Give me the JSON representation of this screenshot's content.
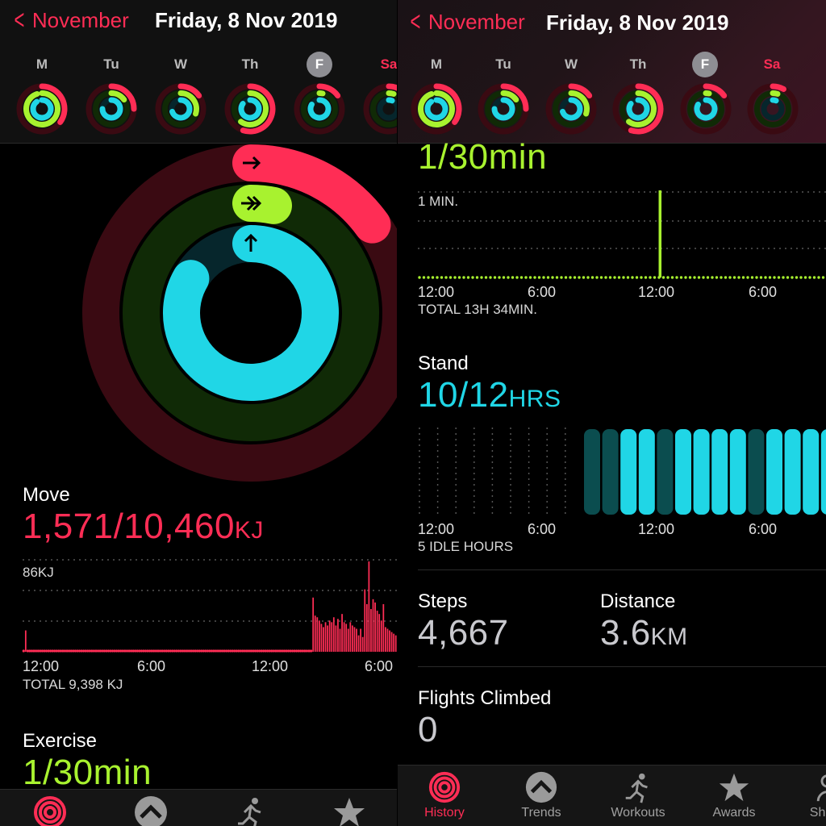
{
  "header": {
    "back_label": "November",
    "date_title": "Friday, 8 Nov 2019",
    "days": [
      "M",
      "Tu",
      "W",
      "Th",
      "F",
      "Sa"
    ],
    "selected_day": "F"
  },
  "rings": {
    "move_fraction": 0.15,
    "exercise_fraction": 0.033,
    "stand_fraction": 0.833
  },
  "move": {
    "label": "Move",
    "value": "1,571/10,460",
    "unit": "KJ",
    "chart_max_label": "86KJ",
    "total": "TOTAL 9,398 KJ",
    "axis": [
      "12:00",
      "6:00",
      "12:00",
      "6:00"
    ]
  },
  "exercise": {
    "label": "Exercise",
    "value": "1/30min",
    "chart_max_label": "1 MIN.",
    "total": "TOTAL 13H 34MIN.",
    "axis": [
      "12:00",
      "6:00",
      "12:00",
      "6:00"
    ]
  },
  "stand": {
    "label": "Stand",
    "value": "10/12",
    "unit": "HRS",
    "idle": "5 IDLE HOURS",
    "axis": [
      "12:00",
      "6:00",
      "12:00",
      "6:00"
    ]
  },
  "steps": {
    "label": "Steps",
    "value": "4,667"
  },
  "distance": {
    "label": "Distance",
    "value": "3.6",
    "unit": "KM"
  },
  "flights": {
    "label": "Flights Climbed",
    "value": "0"
  },
  "tabs": [
    {
      "label": "History",
      "icon": "activity-rings-icon",
      "active": true
    },
    {
      "label": "Trends",
      "icon": "chevron-up-circle-icon",
      "active": false
    },
    {
      "label": "Workouts",
      "icon": "running-figure-icon",
      "active": false
    },
    {
      "label": "Awards",
      "icon": "star-icon",
      "active": false
    },
    {
      "label": "Sha",
      "icon": "sharing-icon",
      "active": false
    }
  ],
  "colors": {
    "move": "#ff2d55",
    "exercise": "#a8f22f",
    "stand": "#20d6e6",
    "accent": "#ff2d55"
  },
  "chart_data": [
    {
      "type": "bar",
      "title": "Move",
      "xlabel": "",
      "ylabel": "",
      "x_ticks": [
        "12:00",
        "6:00",
        "12:00",
        "6:00"
      ],
      "y_max_label": "86KJ",
      "values": [
        2,
        26,
        2,
        2,
        2,
        2,
        2,
        2,
        2,
        2,
        2,
        2,
        2,
        2,
        2,
        2,
        2,
        2,
        2,
        2,
        2,
        2,
        2,
        2,
        2,
        2,
        2,
        2,
        2,
        2,
        2,
        2,
        2,
        2,
        2,
        2,
        2,
        2,
        2,
        2,
        2,
        2,
        2,
        2,
        2,
        2,
        2,
        2,
        2,
        2,
        2,
        2,
        2,
        2,
        2,
        2,
        2,
        2,
        2,
        2,
        2,
        2,
        2,
        2,
        2,
        2,
        2,
        2,
        2,
        2,
        2,
        2,
        2,
        2,
        2,
        2,
        2,
        2,
        2,
        2,
        2,
        2,
        2,
        2,
        2,
        2,
        2,
        2,
        2,
        2,
        2,
        2,
        2,
        2,
        2,
        2,
        2,
        2,
        2,
        2,
        2,
        2,
        2,
        2,
        2,
        2,
        2,
        2,
        2,
        2,
        2,
        2,
        2,
        2,
        2,
        2,
        2,
        2,
        2,
        2,
        2,
        2,
        2,
        2,
        2,
        2,
        2,
        2,
        2,
        2,
        2,
        2,
        2,
        2,
        2,
        2,
        2,
        2,
        2,
        2,
        66,
        44,
        42,
        38,
        34,
        30,
        36,
        32,
        38,
        36,
        42,
        32,
        40,
        28,
        46,
        36,
        34,
        28,
        36,
        32,
        30,
        28,
        20,
        28,
        18,
        76,
        58,
        110,
        52,
        64,
        60,
        50,
        46,
        38,
        58,
        30,
        28,
        26,
        24,
        22,
        20
      ],
      "ylim": [
        0,
        110
      ]
    },
    {
      "type": "bar",
      "title": "Exercise",
      "x_ticks": [
        "12:00",
        "6:00",
        "12:00",
        "6:00"
      ],
      "y_max_label": "1 MIN.",
      "spike_position_fraction": 0.59,
      "values": [
        1
      ]
    },
    {
      "type": "bar",
      "title": "Stand",
      "x_ticks": [
        "12:00",
        "6:00",
        "12:00",
        "6:00"
      ],
      "idle_hour_slots": 9,
      "hours": [
        {
          "stood": false
        },
        {
          "stood": false
        },
        {
          "stood": true
        },
        {
          "stood": true
        },
        {
          "stood": false
        },
        {
          "stood": true
        },
        {
          "stood": true
        },
        {
          "stood": true
        },
        {
          "stood": true
        },
        {
          "stood": false
        },
        {
          "stood": true
        },
        {
          "stood": true
        },
        {
          "stood": true
        },
        {
          "stood": true
        }
      ]
    }
  ]
}
